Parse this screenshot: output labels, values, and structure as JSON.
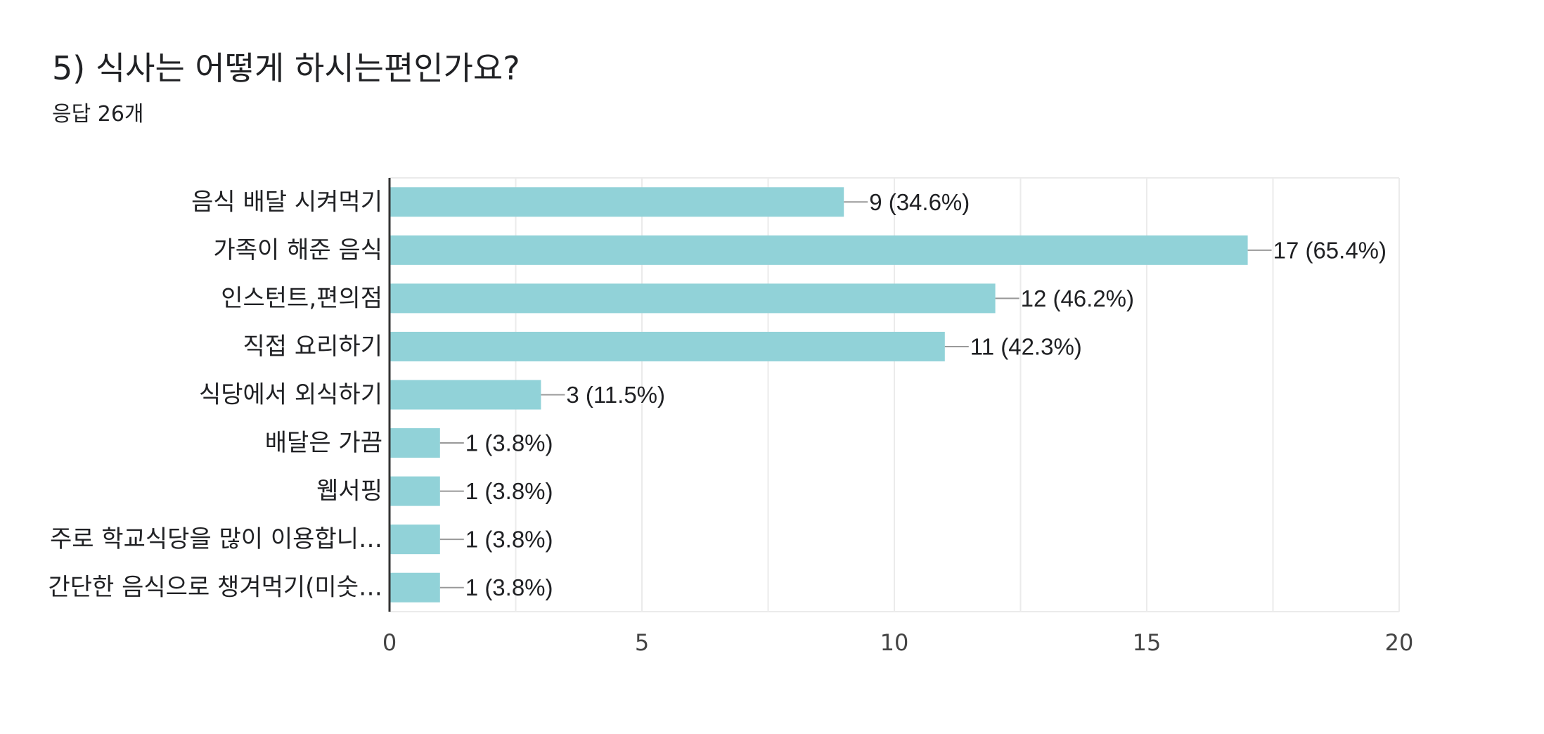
{
  "title": "5) 식사는 어떻게 하시는편인가요?",
  "subtitle": "응답 26개",
  "colors": {
    "bar": "#91d2d8",
    "axis": "#333333",
    "grid": "#ebebeb",
    "leader": "#999999",
    "text": "#202124"
  },
  "chart_data": {
    "type": "bar",
    "orientation": "horizontal",
    "grid": true,
    "xlim": [
      0,
      20
    ],
    "xticks": [
      0,
      5,
      10,
      15,
      20
    ],
    "categories": [
      "음식 배달 시켜먹기",
      "가족이 해준 음식",
      "인스턴트,편의점",
      "직접 요리하기",
      "식당에서 외식하기",
      "배달은 가끔",
      "웹서핑",
      "주로 학교식당을 많이 이용합니…",
      "간단한 음식으로 챙겨먹기(미숫…"
    ],
    "values": [
      9,
      17,
      12,
      11,
      3,
      1,
      1,
      1,
      1
    ],
    "value_labels": [
      "9 (34.6%)",
      "17 (65.4%)",
      "12 (46.2%)",
      "11 (42.3%)",
      "3 (11.5%)",
      "1 (3.8%)",
      "1 (3.8%)",
      "1 (3.8%)",
      "1 (3.8%)"
    ]
  }
}
